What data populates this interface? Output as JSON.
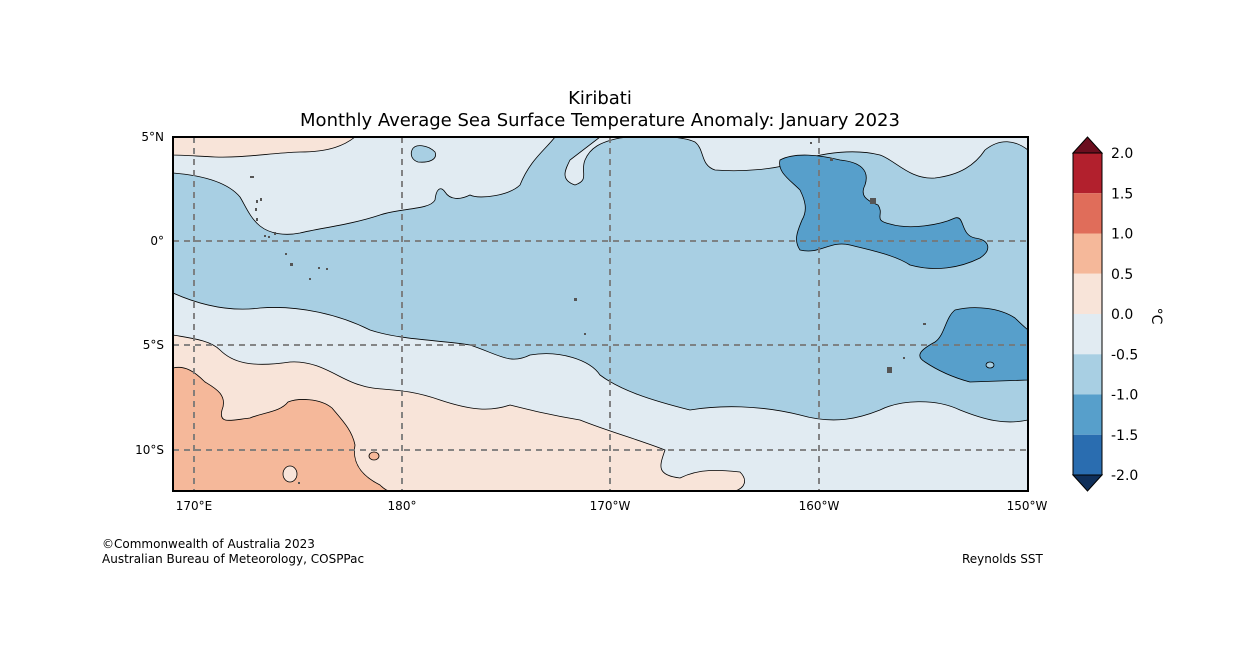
{
  "title": "Kiribati",
  "subtitle": "Monthly Average Sea Surface Temperature Anomaly: January 2023",
  "map": {
    "lon_labels": [
      "170°E",
      "180°",
      "170°W",
      "160°W",
      "150°W"
    ],
    "lat_labels": [
      "5°N",
      "0°",
      "5°S",
      "10°S"
    ]
  },
  "colorbar": {
    "levels": [
      "2.0",
      "1.5",
      "1.0",
      "0.5",
      "0.0",
      "-0.5",
      "-1.0",
      "-1.5",
      "-2.0"
    ],
    "unit": "°C",
    "colors": [
      "#6b0e1e",
      "#b2202d",
      "#e06d5a",
      "#f5b89a",
      "#f8e4d9",
      "#e1ebf2",
      "#a8cfe3",
      "#579fcb",
      "#2a6db0",
      "#0f2f5a"
    ]
  },
  "credits": {
    "left_line1": "©Commonwealth of Australia 2023",
    "left_line2": "Australian Bureau of Meteorology, COSPPac",
    "right": "Reynolds SST"
  }
}
